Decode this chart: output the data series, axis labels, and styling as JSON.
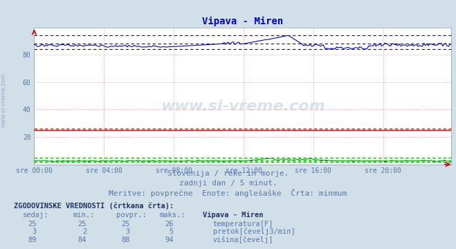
{
  "title": "Vipava - Miren",
  "title_color": "#0000cc",
  "bg_color": "#d0dfe8",
  "plot_bg_color": "#ffffff",
  "grid_color": "#ffaaaa",
  "xlim": [
    0,
    287
  ],
  "ylim": [
    0,
    100
  ],
  "yticks": [
    20,
    40,
    60,
    80
  ],
  "xtick_labels": [
    "sre 00:00",
    "sre 04:00",
    "sre 08:00",
    "sre 12:00",
    "sre 16:00",
    "sre 20:00"
  ],
  "xtick_positions": [
    0,
    48,
    96,
    144,
    192,
    240
  ],
  "temp_color": "#cc0000",
  "flow_color": "#00aa00",
  "height_color": "#0000cc",
  "temp_val": 25.0,
  "temp_min_val": 25.0,
  "temp_avg_val": 25.0,
  "temp_max_val": 26.0,
  "flow_min_val": 2.0,
  "flow_avg_val": 3.0,
  "flow_max_val": 5.0,
  "height_min_val": 84.0,
  "height_avg_val": 88.0,
  "height_max_val": 94.0,
  "subtitle1": "Slovenija / reke in morje.",
  "subtitle2": "zadnji dan / 5 minut.",
  "subtitle3": "Meritve: povprečne  Enote: anglešaške  Črta: minmum",
  "table_header": "ZGODOVINSKE VREDNOSTI (črtkana črta):",
  "col_headers": [
    "sedaj:",
    "min.:",
    "povpr.:",
    "maks.:",
    "Vipava - Miren"
  ],
  "rows": [
    {
      "values": [
        "25",
        "25",
        "25",
        "26"
      ],
      "label": "temperatura[F]",
      "color": "#cc0000"
    },
    {
      "values": [
        "3",
        "2",
        "3",
        "5"
      ],
      "label": "pretok[čevelj3/min]",
      "color": "#00aa00"
    },
    {
      "values": [
        "89",
        "84",
        "88",
        "94"
      ],
      "label": "višina[čevelj]",
      "color": "#0000cc"
    }
  ]
}
